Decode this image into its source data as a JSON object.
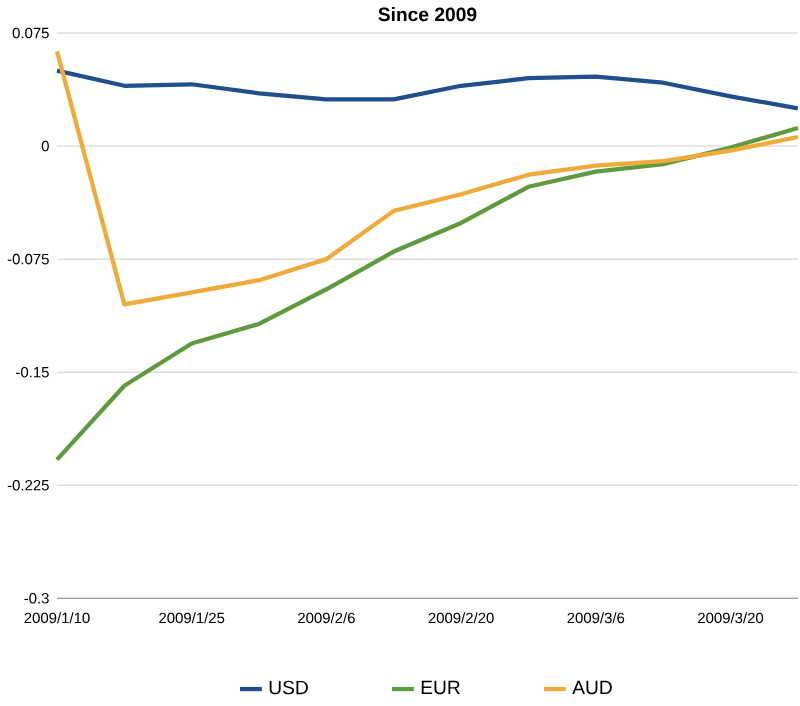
{
  "chart_data": {
    "type": "line",
    "title": "Since 2009",
    "categories": [
      "2009/1/10",
      null,
      "2009/1/25",
      null,
      "2009/2/6",
      null,
      "2009/2/20",
      null,
      "2009/3/6",
      null,
      "2009/3/20",
      null
    ],
    "series": [
      {
        "name": "USD",
        "color": "#1f4f8c",
        "values": [
          0.05,
          0.04,
          0.041,
          0.035,
          0.031,
          0.031,
          0.04,
          0.045,
          0.046,
          0.042,
          0.033,
          0.025
        ]
      },
      {
        "name": "EUR",
        "color": "#5f9a3e",
        "values": [
          -0.208,
          -0.159,
          -0.131,
          -0.118,
          -0.095,
          -0.07,
          -0.051,
          -0.027,
          -0.017,
          -0.012,
          -0.001,
          0.012
        ]
      },
      {
        "name": "AUD",
        "color": "#f0aa3a",
        "values": [
          0.063,
          -0.105,
          -0.097,
          -0.089,
          -0.075,
          -0.043,
          -0.032,
          -0.019,
          -0.013,
          -0.01,
          -0.003,
          0.006
        ]
      }
    ],
    "ylim": [
      -0.3,
      0.075
    ],
    "yticks": [
      0.075,
      0,
      -0.075,
      -0.15,
      -0.225,
      -0.3
    ],
    "grid": "y",
    "legend": "bottom",
    "marker": "none",
    "line_style": "solid"
  }
}
